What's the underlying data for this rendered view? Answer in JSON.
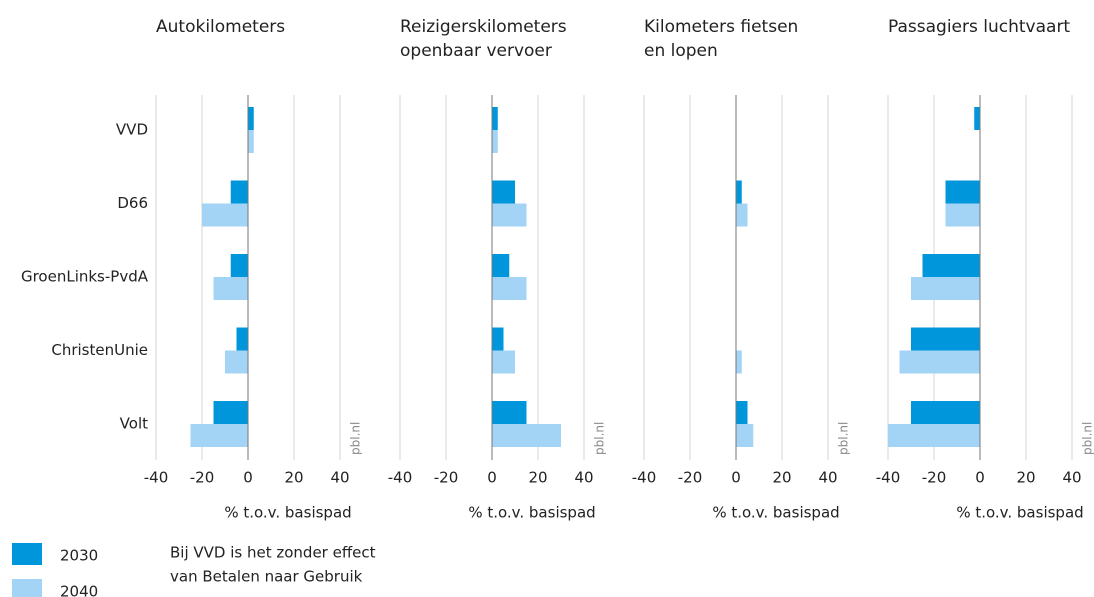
{
  "chart_data": [
    {
      "type": "hbar",
      "title": [
        "Autokilometers"
      ],
      "categories": [
        "VVD",
        "D66",
        "GroenLinks-PvdA",
        "ChristenUnie",
        "Volt"
      ],
      "series": [
        {
          "name": "2030",
          "color": "#0096db",
          "values": [
            2.5,
            -7.5,
            -7.5,
            -5,
            -15
          ]
        },
        {
          "name": "2040",
          "color": "#a3d3f5",
          "values": [
            2.5,
            -20,
            -15,
            -10,
            -25
          ]
        }
      ],
      "xlim": [
        -40,
        40
      ],
      "xticks": [
        -40,
        -20,
        0,
        20,
        40
      ],
      "xlabel": "% t.o.v. basispad",
      "source": "pbl.nl",
      "grid": true
    },
    {
      "type": "hbar",
      "title": [
        "Reizigerskilometers",
        "openbaar vervoer"
      ],
      "categories": [
        "VVD",
        "D66",
        "GroenLinks-PvdA",
        "ChristenUnie",
        "Volt"
      ],
      "series": [
        {
          "name": "2030",
          "color": "#0096db",
          "values": [
            2.5,
            10,
            7.5,
            5,
            15
          ]
        },
        {
          "name": "2040",
          "color": "#a3d3f5",
          "values": [
            2.5,
            15,
            15,
            10,
            30
          ]
        }
      ],
      "xlim": [
        -40,
        40
      ],
      "xticks": [
        -40,
        -20,
        0,
        20,
        40
      ],
      "xlabel": "% t.o.v. basispad",
      "source": "pbl.nl",
      "grid": true
    },
    {
      "type": "hbar",
      "title": [
        "Kilometers fietsen",
        "en lopen"
      ],
      "categories": [
        "VVD",
        "D66",
        "GroenLinks-PvdA",
        "ChristenUnie",
        "Volt"
      ],
      "series": [
        {
          "name": "2030",
          "color": "#0096db",
          "values": [
            0,
            2.5,
            0,
            0,
            5
          ]
        },
        {
          "name": "2040",
          "color": "#a3d3f5",
          "values": [
            0,
            5,
            0,
            2.5,
            7.5
          ]
        }
      ],
      "xlim": [
        -40,
        40
      ],
      "xticks": [
        -40,
        -20,
        0,
        20,
        40
      ],
      "xlabel": "% t.o.v. basispad",
      "source": "pbl.nl",
      "grid": true
    },
    {
      "type": "hbar",
      "title": [
        "Passagiers luchtvaart"
      ],
      "categories": [
        "VVD",
        "D66",
        "GroenLinks-PvdA",
        "ChristenUnie",
        "Volt"
      ],
      "series": [
        {
          "name": "2030",
          "color": "#0096db",
          "values": [
            -2.5,
            -15,
            -25,
            -30,
            -30
          ]
        },
        {
          "name": "2040",
          "color": "#a3d3f5",
          "values": [
            0,
            -15,
            -30,
            -35,
            -40
          ]
        }
      ],
      "xlim": [
        -40,
        40
      ],
      "xticks": [
        -40,
        -20,
        0,
        20,
        40
      ],
      "xlabel": "% t.o.v. basispad",
      "source": "pbl.nl",
      "grid": true
    }
  ],
  "note": [
    "Bij VVD is het zonder effect",
    "van Betalen naar Gebruik"
  ]
}
